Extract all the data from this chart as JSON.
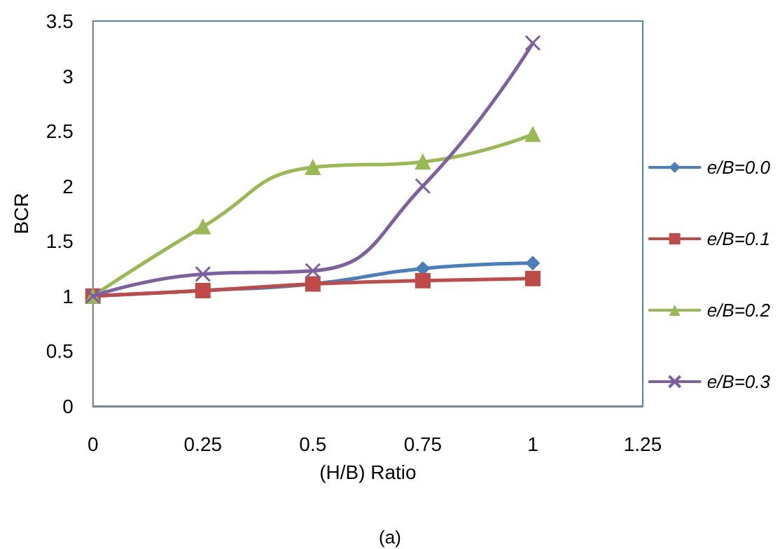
{
  "chart_data": {
    "type": "line",
    "xlabel": "(H/B) Ratio",
    "ylabel": "BCR",
    "annotations": [
      "(a)"
    ],
    "x": [
      0,
      0.25,
      0.5,
      0.75,
      1
    ],
    "series": [
      {
        "name": "e/B=0.0",
        "color": "#4a7ebb",
        "marker": "diamond",
        "values": [
          1,
          1.05,
          1.11,
          1.25,
          1.3
        ]
      },
      {
        "name": "e/B=0.1",
        "color": "#be4b48",
        "marker": "square",
        "values": [
          1,
          1.05,
          1.11,
          1.14,
          1.16
        ]
      },
      {
        "name": "e/B=0.2",
        "color": "#98b954",
        "marker": "triangle",
        "values": [
          1,
          1.63,
          2.17,
          2.22,
          2.47
        ]
      },
      {
        "name": "e/B=0.3",
        "color": "#7d60a0",
        "marker": "cross",
        "values": [
          1,
          1.2,
          1.23,
          2.0,
          3.3
        ]
      }
    ],
    "xlim": [
      0,
      1.25
    ],
    "xticks": [
      0,
      0.25,
      0.5,
      0.75,
      1,
      1.25
    ],
    "ylim": [
      0,
      3.5
    ],
    "yticks": [
      0,
      0.5,
      1,
      1.5,
      2,
      2.5,
      3,
      3.5
    ],
    "grid": false,
    "legend": "right",
    "line_style": "solid"
  }
}
